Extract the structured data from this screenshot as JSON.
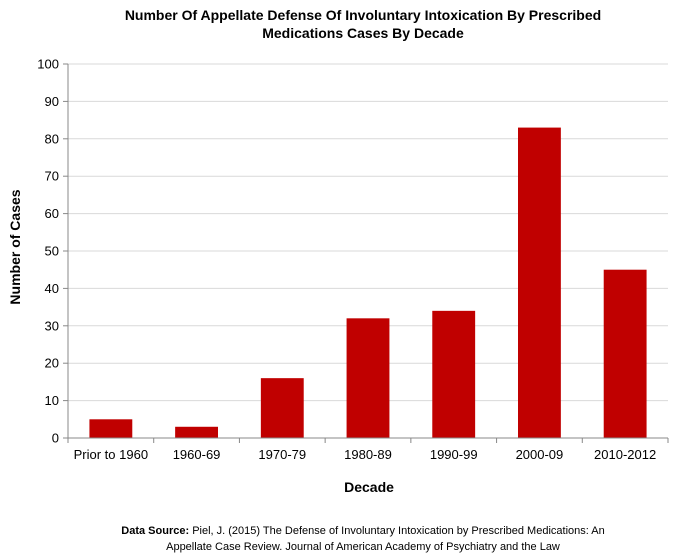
{
  "chart_data": {
    "type": "bar",
    "title_line1": "Number Of Appellate Defense Of Involuntary Intoxication By Prescribed",
    "title_line2": "Medications Cases By Decade",
    "xlabel": "Decade",
    "ylabel": "Number of Cases",
    "categories": [
      "Prior to 1960",
      "1960-69",
      "1970-79",
      "1980-89",
      "1990-99",
      "2000-09",
      "2010-2012"
    ],
    "values": [
      5,
      3,
      16,
      32,
      34,
      83,
      45
    ],
    "ylim": [
      0,
      100
    ],
    "yticks": [
      0,
      10,
      20,
      30,
      40,
      50,
      60,
      70,
      80,
      90,
      100
    ],
    "grid": true,
    "legend": "none",
    "bar_color": "#C00000"
  },
  "source": {
    "label": "Data Source:",
    "line1_text": " Piel, J. (2015) The Defense of Involuntary Intoxication by Prescribed Medications: An",
    "line2_text": "Appellate Case Review. Journal of American Academy of Psychiatry and the Law"
  }
}
